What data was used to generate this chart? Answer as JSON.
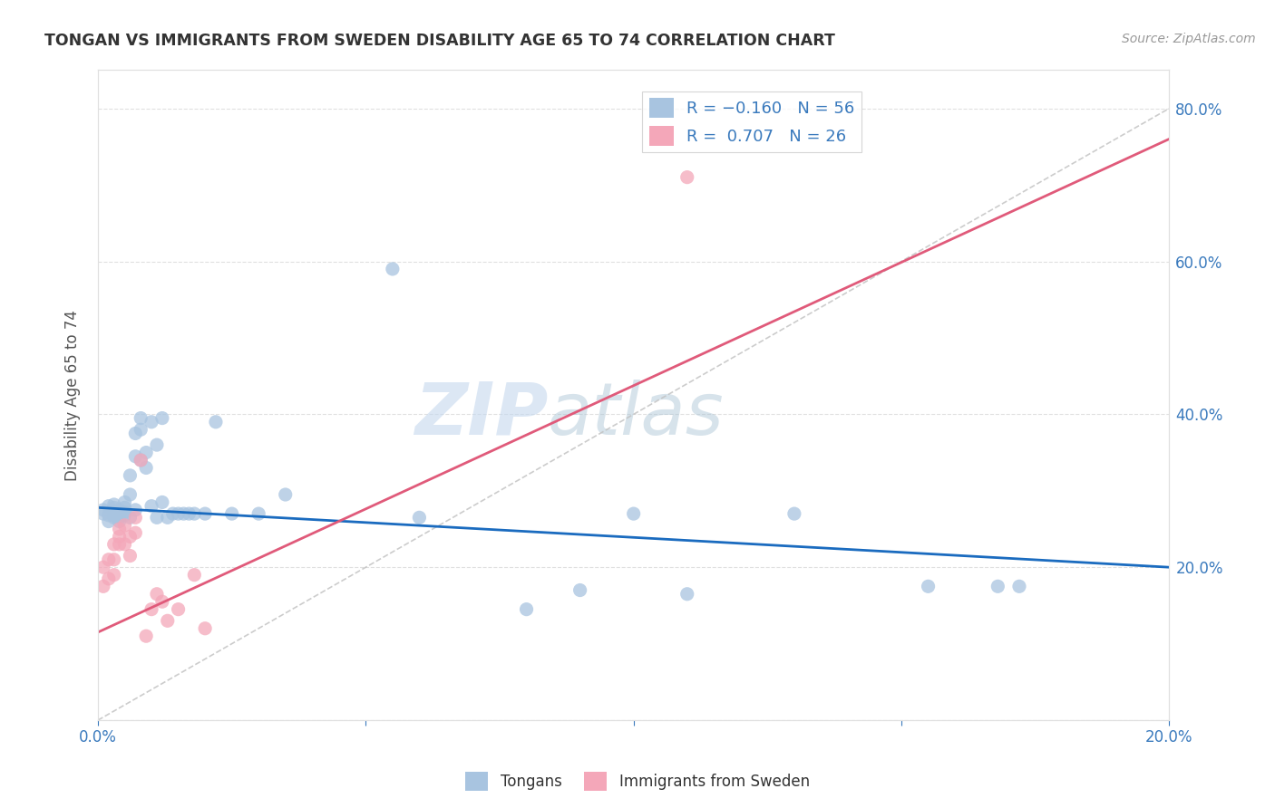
{
  "title": "TONGAN VS IMMIGRANTS FROM SWEDEN DISABILITY AGE 65 TO 74 CORRELATION CHART",
  "source": "Source: ZipAtlas.com",
  "ylabel": "Disability Age 65 to 74",
  "xlim": [
    0.0,
    0.2
  ],
  "ylim": [
    0.0,
    0.85
  ],
  "xticks": [
    0.0,
    0.05,
    0.1,
    0.15,
    0.2
  ],
  "yticks": [
    0.0,
    0.2,
    0.4,
    0.6,
    0.8
  ],
  "watermark_zip": "ZIP",
  "watermark_atlas": "atlas",
  "legend_label1": "Tongans",
  "legend_label2": "Immigrants from Sweden",
  "color_tongan": "#a8c4e0",
  "color_sweden": "#f4a7b9",
  "color_trend_tongan": "#1a6bbf",
  "color_trend_sweden": "#e05a7a",
  "color_diagonal": "#c0c0c0",
  "tongan_x": [
    0.001,
    0.001,
    0.002,
    0.002,
    0.002,
    0.003,
    0.003,
    0.003,
    0.003,
    0.003,
    0.004,
    0.004,
    0.004,
    0.004,
    0.005,
    0.005,
    0.005,
    0.005,
    0.006,
    0.006,
    0.006,
    0.007,
    0.007,
    0.007,
    0.008,
    0.008,
    0.008,
    0.009,
    0.009,
    0.01,
    0.01,
    0.011,
    0.011,
    0.012,
    0.012,
    0.013,
    0.014,
    0.015,
    0.016,
    0.017,
    0.018,
    0.02,
    0.022,
    0.025,
    0.03,
    0.035,
    0.055,
    0.06,
    0.08,
    0.09,
    0.1,
    0.11,
    0.13,
    0.155,
    0.168,
    0.172
  ],
  "tongan_y": [
    0.27,
    0.275,
    0.26,
    0.268,
    0.28,
    0.265,
    0.268,
    0.272,
    0.278,
    0.282,
    0.26,
    0.265,
    0.27,
    0.275,
    0.268,
    0.272,
    0.278,
    0.285,
    0.265,
    0.295,
    0.32,
    0.275,
    0.345,
    0.375,
    0.34,
    0.38,
    0.395,
    0.33,
    0.35,
    0.28,
    0.39,
    0.265,
    0.36,
    0.285,
    0.395,
    0.265,
    0.27,
    0.27,
    0.27,
    0.27,
    0.27,
    0.27,
    0.39,
    0.27,
    0.27,
    0.295,
    0.59,
    0.265,
    0.145,
    0.17,
    0.27,
    0.165,
    0.27,
    0.175,
    0.175,
    0.175
  ],
  "sweden_x": [
    0.001,
    0.001,
    0.002,
    0.002,
    0.003,
    0.003,
    0.003,
    0.004,
    0.004,
    0.004,
    0.005,
    0.005,
    0.006,
    0.006,
    0.007,
    0.007,
    0.008,
    0.009,
    0.01,
    0.011,
    0.012,
    0.013,
    0.015,
    0.018,
    0.02,
    0.11
  ],
  "sweden_y": [
    0.175,
    0.2,
    0.21,
    0.185,
    0.19,
    0.23,
    0.21,
    0.23,
    0.25,
    0.24,
    0.255,
    0.23,
    0.215,
    0.24,
    0.245,
    0.265,
    0.34,
    0.11,
    0.145,
    0.165,
    0.155,
    0.13,
    0.145,
    0.19,
    0.12,
    0.71
  ],
  "blue_trend_x0": 0.0,
  "blue_trend_y0": 0.278,
  "blue_trend_x1": 0.2,
  "blue_trend_y1": 0.2,
  "pink_trend_x0": 0.0,
  "pink_trend_y0": 0.115,
  "pink_trend_x1": 0.2,
  "pink_trend_y1": 0.76
}
